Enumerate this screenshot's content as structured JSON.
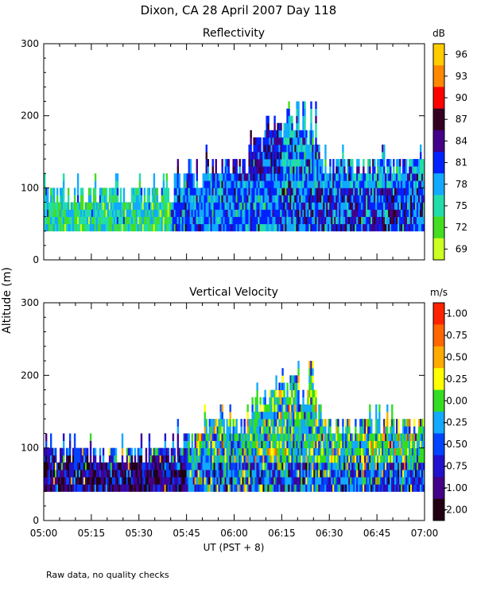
{
  "page_title": "Dixon, CA 28 April 2007  Day 118",
  "footnote": "Raw data, no quality checks",
  "y_axis_label": "Altitude (m)",
  "x_axis_label": "UT  (PST + 8)",
  "chart_data": [
    {
      "type": "heatmap",
      "title": "Reflectivity",
      "xlabel": "UT  (PST + 8)",
      "ylabel": "Altitude (m)",
      "x_ticks": [
        "05:00",
        "05:15",
        "05:30",
        "05:45",
        "06:00",
        "06:15",
        "06:30",
        "06:45",
        "07:00"
      ],
      "x_range_minutes": [
        0,
        120
      ],
      "y_ticks": [
        0,
        100,
        200,
        300
      ],
      "ylim": [
        0,
        300
      ],
      "colorbar_unit": "dB",
      "colorbar_labels": [
        "96",
        "93",
        "90",
        "87",
        "84",
        "81",
        "78",
        "75",
        "72",
        "69"
      ],
      "colorbar_colors": [
        "#ffcc00",
        "#ff8800",
        "#ff0000",
        "#330022",
        "#440088",
        "#0022ff",
        "#11aaff",
        "#22ddaa",
        "#44dd22",
        "#ccff22"
      ],
      "data_range_m": [
        40,
        220
      ],
      "notes": "Dense echoes between 40 and ~140 m, scattered returns to ~220 m near 06:20 UT"
    },
    {
      "type": "heatmap",
      "title": "Vertical Velocity",
      "xlabel": "UT  (PST + 8)",
      "ylabel": "Altitude (m)",
      "x_ticks": [
        "05:00",
        "05:15",
        "05:30",
        "05:45",
        "06:00",
        "06:15",
        "06:30",
        "06:45",
        "07:00"
      ],
      "x_range_minutes": [
        0,
        120
      ],
      "y_ticks": [
        0,
        100,
        200,
        300
      ],
      "ylim": [
        0,
        300
      ],
      "colorbar_unit": "m/s",
      "colorbar_labels": [
        "1.00",
        "0.75",
        "0.50",
        "0.25",
        "0.00",
        "-0.25",
        "-0.50",
        "-0.75",
        "-1.00",
        "-2.00"
      ],
      "colorbar_colors": [
        "#ff2200",
        "#ff6600",
        "#ffaa00",
        "#ffff00",
        "#33dd22",
        "#11aaff",
        "#0044ff",
        "#2211cc",
        "#440088",
        "#220011"
      ],
      "data_range_m": [
        40,
        220
      ],
      "notes": "Strong downward velocities below 100 m early; mixed up/down motion after 05:45"
    }
  ]
}
